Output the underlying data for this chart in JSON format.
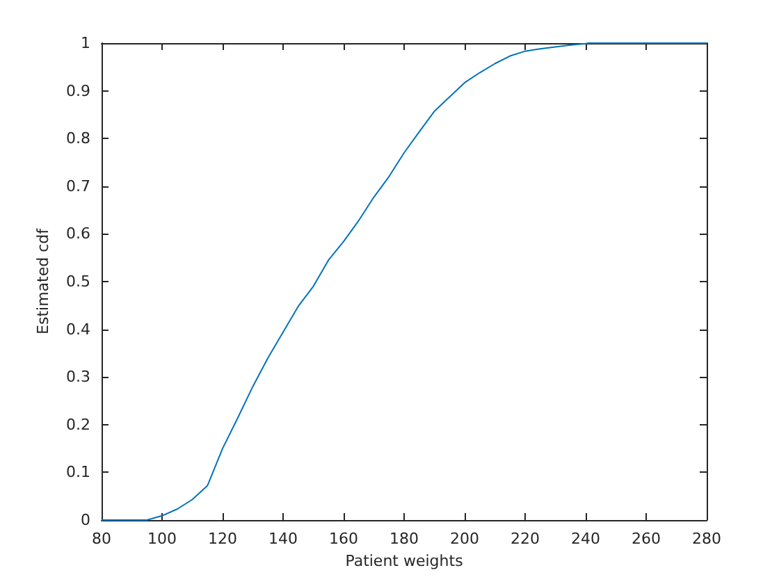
{
  "chart_data": {
    "type": "line",
    "xlabel": "Patient weights",
    "ylabel": "Estimated cdf",
    "x": [
      80,
      95,
      100,
      105,
      110,
      115,
      120,
      125,
      130,
      135,
      140,
      145,
      150,
      155,
      160,
      165,
      170,
      175,
      180,
      185,
      190,
      195,
      200,
      205,
      210,
      215,
      220,
      225,
      230,
      235,
      240,
      241,
      280
    ],
    "series": [
      {
        "color": "#0072bd",
        "values": [
          0,
          0,
          0.009,
          0.023,
          0.043,
          0.072,
          0.15,
          0.214,
          0.28,
          0.34,
          0.394,
          0.448,
          0.49,
          0.545,
          0.584,
          0.628,
          0.677,
          0.72,
          0.77,
          0.814,
          0.857,
          0.887,
          0.917,
          0.938,
          0.957,
          0.973,
          0.983,
          0.988,
          0.992,
          0.996,
          0.999,
          1,
          1
        ]
      }
    ],
    "xlim": [
      80,
      280
    ],
    "xticks": [
      80,
      100,
      120,
      140,
      160,
      180,
      200,
      220,
      240,
      260,
      280
    ],
    "ylim": [
      0,
      1
    ],
    "yticks": [
      0,
      0.1,
      0.2,
      0.3,
      0.4,
      0.5,
      0.6,
      0.7,
      0.8,
      0.9,
      1
    ],
    "grid": false,
    "marker": "none",
    "line_style": "solid"
  }
}
